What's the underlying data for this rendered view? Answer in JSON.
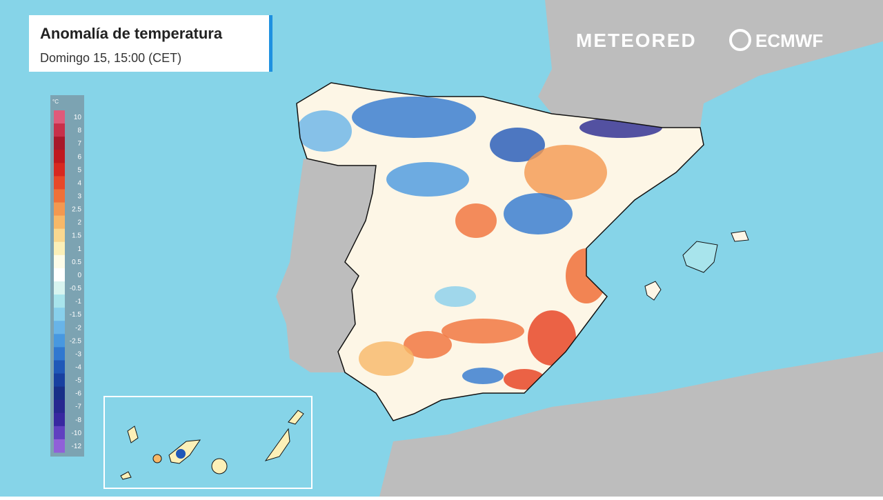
{
  "header": {
    "title": "Anomalía de temperatura",
    "subtitle": "Domingo 15, 15:00 (CET)"
  },
  "brands": [
    "METEORED",
    "ECMWF"
  ],
  "legend": {
    "unit": "°C",
    "stops": [
      {
        "value": 10,
        "color": "#e05a7a"
      },
      {
        "value": 8,
        "color": "#c8304a"
      },
      {
        "value": 7,
        "color": "#a8182a"
      },
      {
        "value": 6,
        "color": "#c0181e"
      },
      {
        "value": 5,
        "color": "#d82820"
      },
      {
        "value": 4,
        "color": "#e84828"
      },
      {
        "value": 3,
        "color": "#f07038"
      },
      {
        "value": 2.5,
        "color": "#f49850"
      },
      {
        "value": 2,
        "color": "#f8b868"
      },
      {
        "value": 1.5,
        "color": "#fad890"
      },
      {
        "value": 1,
        "color": "#fcf0b8"
      },
      {
        "value": 0.5,
        "color": "#fefce8"
      },
      {
        "value": 0,
        "color": "#ffffff"
      },
      {
        "value": -0.5,
        "color": "#d8f4f0"
      },
      {
        "value": -1,
        "color": "#a8e4ec"
      },
      {
        "value": -1.5,
        "color": "#88d0ec"
      },
      {
        "value": -2,
        "color": "#68b4e8"
      },
      {
        "value": -2.5,
        "color": "#4898e0"
      },
      {
        "value": -3,
        "color": "#3078d0"
      },
      {
        "value": -4,
        "color": "#2058b8"
      },
      {
        "value": -5,
        "color": "#1840a0"
      },
      {
        "value": -6,
        "color": "#183088"
      },
      {
        "value": -7,
        "color": "#282890"
      },
      {
        "value": -8,
        "color": "#3828a0"
      },
      {
        "value": -10,
        "color": "#6040c0"
      },
      {
        "value": -12,
        "color": "#9060d8"
      }
    ]
  }
}
